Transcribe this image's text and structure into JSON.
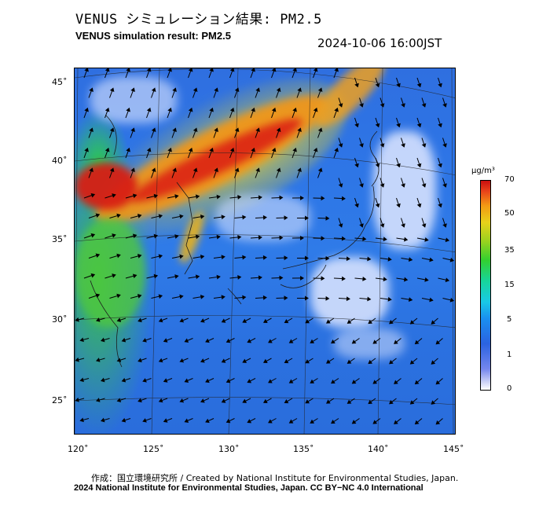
{
  "header": {
    "title_jp": "VENUS シミュレーション結果: PM2.5",
    "title_en": "VENUS simulation result: PM2.5",
    "timestamp": "2024-10-06 16:00JST"
  },
  "map": {
    "lat_labels": [
      "45˚",
      "40˚",
      "35˚",
      "30˚",
      "25˚"
    ],
    "lon_labels": [
      "120˚",
      "125˚",
      "130˚",
      "135˚",
      "140˚",
      "145˚"
    ]
  },
  "colorbar": {
    "unit": "μg/m³",
    "ticks": [
      "70",
      "50",
      "35",
      "15",
      "5",
      "1",
      "0"
    ],
    "colors": [
      "#ffffff",
      "#7486ee",
      "#2b63e0",
      "#19c9e6",
      "#33cf2f",
      "#e8d21a",
      "#e8421a",
      "#c80f0f"
    ]
  },
  "footer": {
    "credit_line1": "作成：国立環境研究所 / Created by National Institute for Environmental Studies, Japan.",
    "credit_line2": "2024 National Institute for Environmental Studies, Japan. CC BY−NC 4.0 International"
  }
}
